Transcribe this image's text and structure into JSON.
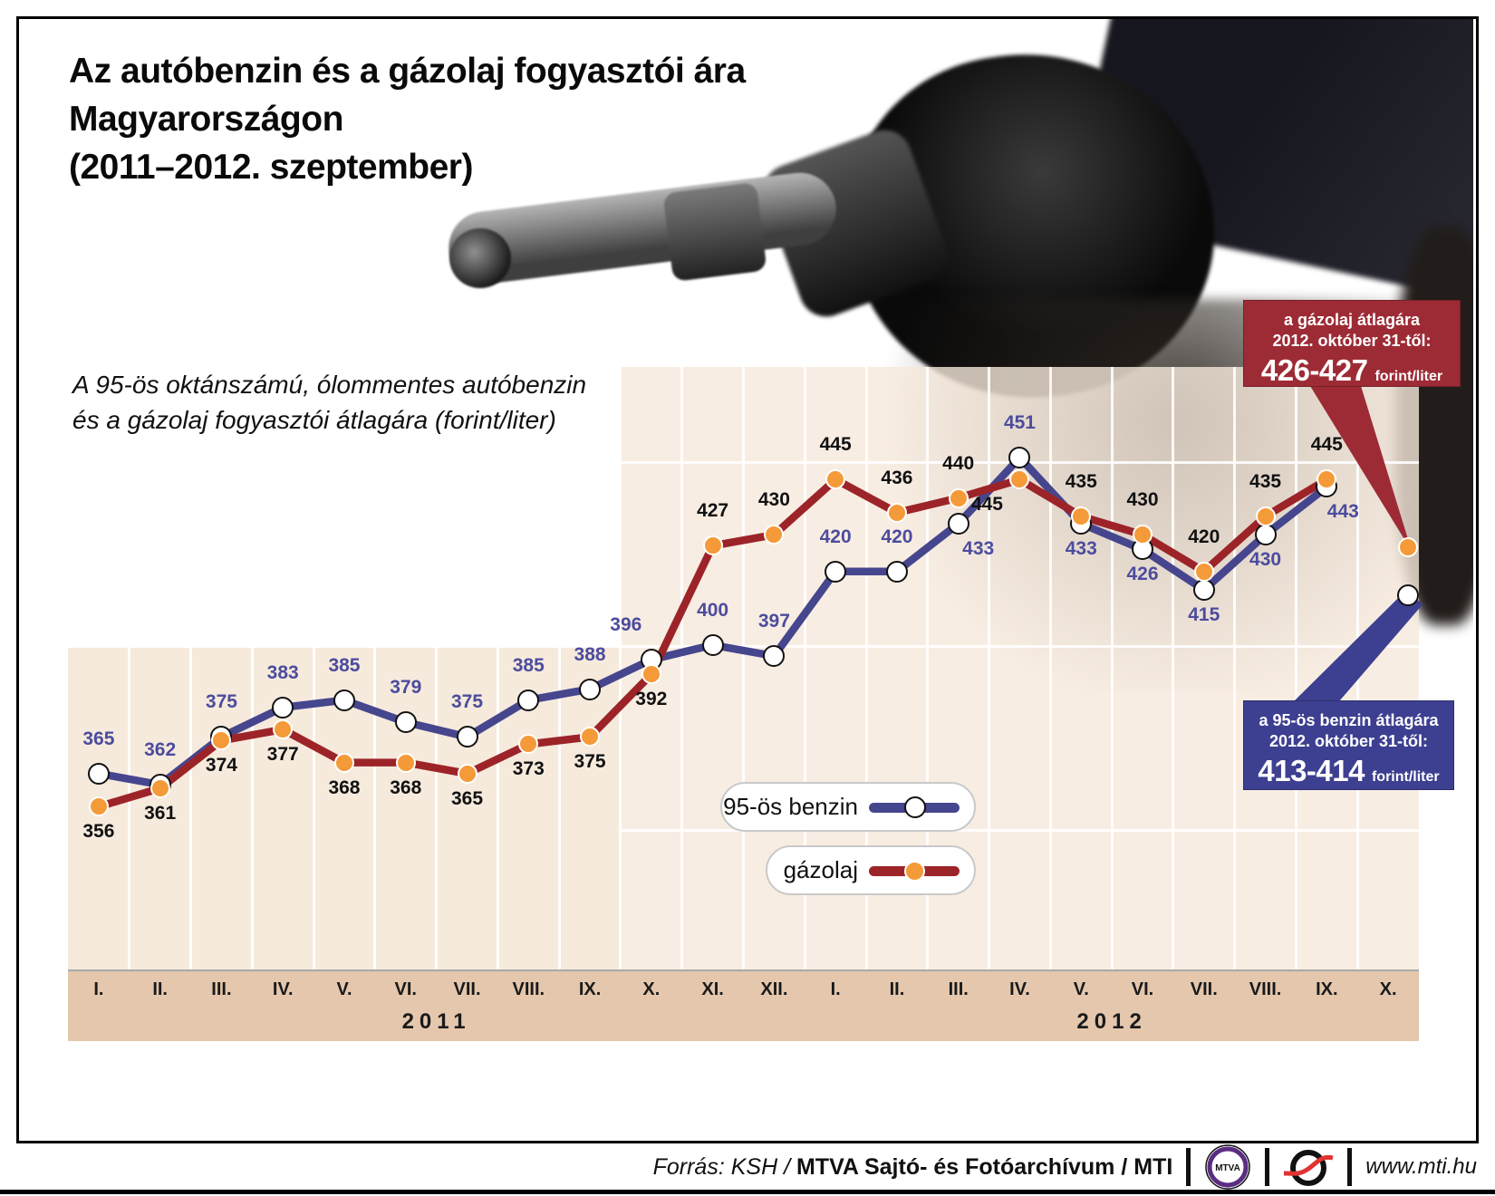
{
  "title": {
    "line1": "Az autóbenzin és a gázolaj fogyasztói ára",
    "line2": "Magyarországon",
    "line3": "(2011–2012. szeptember)"
  },
  "subtitle": {
    "line1": "A 95-ös oktánszámú, ólommentes autóbenzin",
    "line2": "és a gázolaj fogyasztói átlagára (forint/liter)"
  },
  "legend": {
    "benzin_label": "95-ös benzin",
    "gazolaj_label": "gázolaj"
  },
  "callouts": {
    "gazolaj": {
      "line1": "a gázolaj átlagára",
      "line2": "2012. október 31-től:",
      "value": "426-427",
      "unit": "forint/liter",
      "bg": "#9d2b35"
    },
    "benzin": {
      "line1": "a 95-ös benzin átlagára",
      "line2": "2012. október 31-től:",
      "value": "413-414",
      "unit": "forint/liter",
      "bg": "#3d3f90"
    }
  },
  "chart_data": {
    "type": "line",
    "unit": "forint/liter",
    "x_groups": [
      {
        "year": "2011",
        "months": [
          "I.",
          "II.",
          "III.",
          "IV.",
          "V.",
          "VI.",
          "VII.",
          "VIII.",
          "IX.",
          "X.",
          "XI.",
          "XII."
        ]
      },
      {
        "year": "2012",
        "months": [
          "I.",
          "II.",
          "III.",
          "IV.",
          "V.",
          "VI.",
          "VII.",
          "VIII.",
          "IX.",
          "X."
        ]
      }
    ],
    "series": [
      {
        "name": "95-ös benzin",
        "color": "#46468e",
        "label_color": "#4c4c9e",
        "marker": "white",
        "values": [
          365,
          362,
          375,
          383,
          385,
          379,
          375,
          385,
          388,
          396,
          400,
          397,
          420,
          420,
          433,
          451,
          433,
          426,
          415,
          430,
          443,
          null
        ],
        "label_pos": [
          "a",
          "a",
          "a",
          "a",
          "a",
          "a",
          "a",
          "a",
          "a",
          "a",
          "a",
          "a",
          "a",
          "a",
          "b",
          "a",
          "b",
          "b",
          "b",
          "b",
          "b"
        ],
        "label_dx": {
          "9": -28,
          "14": 22,
          "20": 18
        }
      },
      {
        "name": "gázolaj",
        "color": "#9c2429",
        "label_color": "#111111",
        "marker": "orange",
        "values": [
          356,
          361,
          374,
          377,
          368,
          368,
          365,
          373,
          375,
          392,
          427,
          430,
          445,
          436,
          440,
          445,
          435,
          430,
          420,
          435,
          445,
          null
        ],
        "label_pos": [
          "b",
          "b",
          "b",
          "b",
          "b",
          "b",
          "b",
          "b",
          "b",
          "b",
          "a",
          "a",
          "a",
          "a",
          "a",
          "b",
          "a",
          "a",
          "a",
          "a",
          "a"
        ],
        "label_dx": {
          "15": -36
        }
      }
    ],
    "october_estimates": {
      "benzin": 413.5,
      "gazolaj": 426.5
    },
    "ylim": [
      312,
      476
    ],
    "grid_values": [
      350,
      400,
      450
    ],
    "legend_position": "inside-bottom-center"
  },
  "footer": {
    "source_italic": "Forrás: KSH /",
    "source_bold": "MTVA Sajtó- és Fotóarchívum / MTI",
    "url": "www.mti.hu",
    "mtva_text": "MTVA"
  },
  "colors": {
    "panel": "#f5e7d9",
    "axis_strip": "#e4c7ad",
    "benzin": "#46468e",
    "gazolaj": "#9c2429",
    "orange_marker": "#f59a38",
    "callout_red": "#9d2b35",
    "callout_blue": "#3d3f90"
  }
}
